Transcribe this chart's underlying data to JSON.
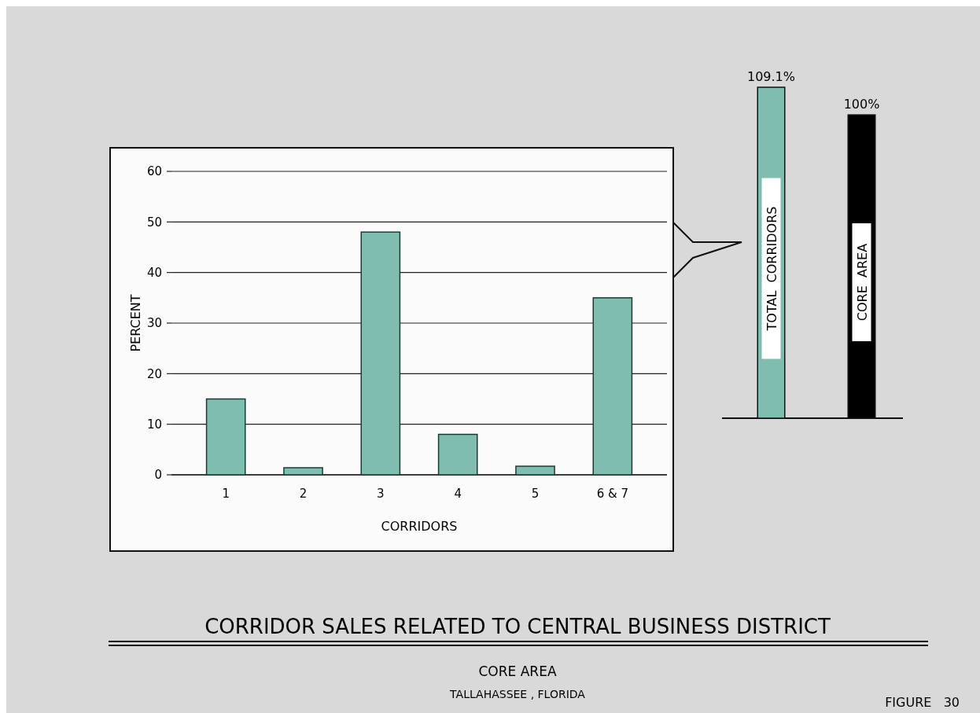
{
  "chart_data": [
    {
      "type": "bar",
      "title": "CORRIDOR  SALES  RELATED  TO  CENTRAL  BUSINESS  DISTRICT",
      "subtitle": "CORE  AREA",
      "xlabel": "CORRIDORS",
      "ylabel": "PERCENT",
      "categories": [
        "1",
        "2",
        "3",
        "4",
        "5",
        "6 & 7"
      ],
      "values": [
        15,
        1.4,
        48,
        8,
        1.7,
        35
      ],
      "color": "#7fbdb0",
      "ylim": [
        0,
        60
      ],
      "yticks": [
        0,
        10,
        20,
        30,
        40,
        50,
        60
      ],
      "grid": "y",
      "annotations": [
        "TALLAHASSEE , FLORIDA",
        "FIGURE   30"
      ]
    },
    {
      "type": "bar",
      "categories": [
        "TOTAL  CORRIDORS",
        "CORE  AREA"
      ],
      "values": [
        109.1,
        100
      ],
      "colors": [
        "#7fbdb0",
        "#000000"
      ],
      "value_labels": [
        "109.1%",
        "100%"
      ]
    }
  ]
}
